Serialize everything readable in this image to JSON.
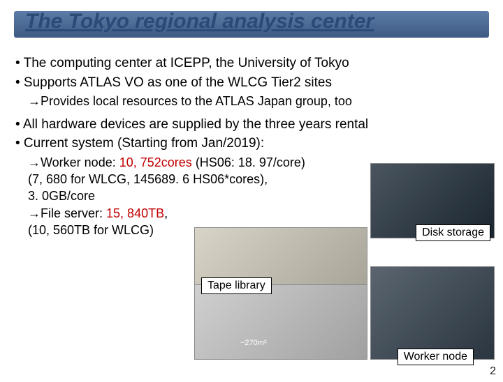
{
  "title": "The Tokyo regional analysis center",
  "bullets": {
    "b1": "• The computing center at ICEPP, the University of Tokyo",
    "b2": "• Supports ATLAS VO as one of the WLCG Tier2 sites",
    "b2sub": "→Provides local resources to the ATLAS Japan group, too",
    "b3": "• All hardware devices are supplied by the three years rental",
    "b4": "• Current system (Starting from Jan/2019):"
  },
  "specs": {
    "wn_prefix": "→Worker node: ",
    "wn_cores": "10, 752cores",
    "wn_hs": " (HS06: 18. 97/core)",
    "wn_line2": "(7, 680 for WLCG, 145689. 6 HS06*cores),",
    "wn_line3": "3. 0GB/core",
    "fs_prefix": "→File server: ",
    "fs_tb": "15, 840TB",
    "fs_suffix": ",",
    "fs_line2": "(10, 560TB for WLCG)"
  },
  "labels": {
    "disk": "Disk storage",
    "tape": "Tape library",
    "worker": "Worker node",
    "area": "~270m²"
  },
  "pagenum": "2",
  "colors": {
    "title": "#2a4a78",
    "highlight": "#c00000",
    "bar_top": "#5b7ca8",
    "bar_bottom": "#3d5a82"
  }
}
